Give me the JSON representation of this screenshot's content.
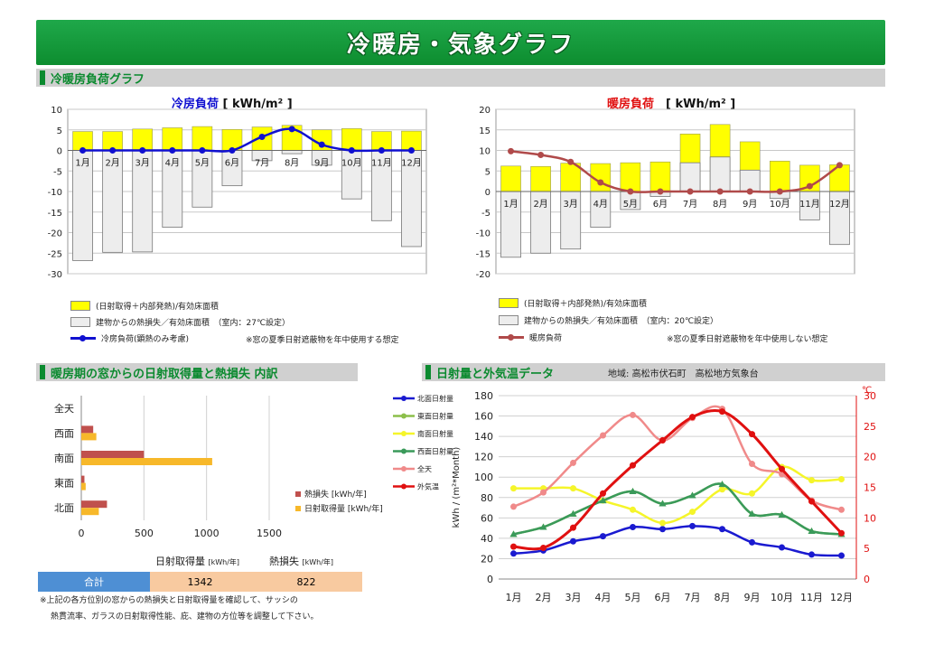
{
  "banner_title": "冷暖房・気象グラフ",
  "sections": {
    "load": "冷暖房負荷グラフ",
    "window": "暖房期の窓からの日射取得量と熱損失 内訳",
    "weather": "日射量と外気温データ",
    "location": "地域: 高松市伏石町　高松地方気象台"
  },
  "cooling_title": "冷房負荷",
  "cooling_unit": "[ kWh/m² ]",
  "heating_title": "暖房負荷",
  "heating_unit": "[ kWh/m² ]",
  "cooling_legend": {
    "gain": "(日射取得＋内部発熱)/有効床面積",
    "loss": "建物からの熱損失／有効床面積　（室内：27℃設定）",
    "line": "冷房負荷(顕熱のみ考慮)",
    "note": "※窓の夏季日射遮蔽物を年中使用する想定"
  },
  "heating_legend": {
    "gain": "(日射取得＋内部発熱)/有効床面積",
    "loss": "建物からの熱損失／有効床面積　（室内：20℃設定）",
    "line": "暖房負荷",
    "note": "※窓の夏季日射遮蔽物を年中使用しない想定"
  },
  "totals": {
    "label": "合計",
    "gain_header": "日射取得量",
    "loss_header": "熱損失",
    "unit": "[kWh/年]",
    "gain_value": "1342",
    "loss_value": "822"
  },
  "footnote": {
    "line1": "※上記の各方位別の窓からの熱損失と日射取得量を確認して、サッシの",
    "line2": "熱貫流率、ガラスの日射取得性能、庇、建物の方位等を調整して下さい。"
  },
  "weather_ylabel": "kWh / (m²*Month)",
  "weather_y2unit": "℃",
  "colors": {
    "banner": "#13a03f",
    "section_text": "#0b8a2f",
    "yellow_bar": "#ffff00",
    "gray_bar": "#ededed",
    "cooling_line": "#1010d0",
    "heating_line": "#b04a4a",
    "loss_bar": "#c0504d",
    "gain_bar": "#f7b82a"
  },
  "chart_data": [
    {
      "type": "bar",
      "title": "冷房負荷 [ kWh/m² ]",
      "categories": [
        "1月",
        "2月",
        "3月",
        "4月",
        "5月",
        "6月",
        "7月",
        "8月",
        "9月",
        "10月",
        "11月",
        "12月"
      ],
      "ylim": [
        -30,
        10
      ],
      "yticks": [
        -30,
        -25,
        -20,
        -15,
        -10,
        -5,
        0,
        5,
        10
      ],
      "series": [
        {
          "name": "(日射取得＋内部発熱)/有効床面積",
          "kind": "bar",
          "values": [
            4.6,
            4.6,
            5.2,
            5.5,
            5.8,
            5.1,
            5.7,
            6.1,
            5.0,
            5.3,
            4.6,
            4.7
          ]
        },
        {
          "name": "建物からの熱損失／有効床面積",
          "kind": "bar",
          "values": [
            -26.8,
            -24.8,
            -24.7,
            -18.7,
            -13.8,
            -8.6,
            -2.5,
            -0.8,
            -3.6,
            -11.8,
            -17.1,
            -23.4
          ]
        },
        {
          "name": "冷房負荷(顕熱のみ考慮)",
          "kind": "line",
          "values": [
            0,
            0,
            0,
            0,
            0,
            0,
            3.3,
            5.2,
            1.4,
            0,
            0,
            0
          ]
        }
      ]
    },
    {
      "type": "bar",
      "title": "暖房負荷 [ kWh/m² ]",
      "categories": [
        "1月",
        "2月",
        "3月",
        "4月",
        "5月",
        "6月",
        "7月",
        "8月",
        "9月",
        "10月",
        "11月",
        "12月"
      ],
      "ylim": [
        -20,
        20
      ],
      "yticks": [
        -20,
        -15,
        -10,
        -5,
        0,
        5,
        10,
        15,
        20
      ],
      "series": [
        {
          "name": "(日射取得＋内部発熱)/有効床面積",
          "kind": "bar",
          "values": [
            6.2,
            6.1,
            6.9,
            6.8,
            7.0,
            7.2,
            14.0,
            16.3,
            12.1,
            7.4,
            6.4,
            6.5
          ]
        },
        {
          "name": "建物からの熱損失／有効床面積",
          "kind": "bar",
          "values": [
            -16,
            -15,
            -14,
            -8.7,
            -4.4,
            -1.2,
            7.0,
            8.4,
            5.2,
            -1.7,
            -6.9,
            -12.9
          ]
        },
        {
          "name": "暖房負荷",
          "kind": "line",
          "values": [
            9.8,
            8.9,
            7.2,
            2.2,
            0,
            0,
            0,
            0,
            0,
            0,
            1.3,
            6.4
          ]
        }
      ]
    },
    {
      "type": "bar",
      "orientation": "horizontal",
      "categories": [
        "全天",
        "西面",
        "南面",
        "東面",
        "北面"
      ],
      "xlim": [
        0,
        1500
      ],
      "xticks": [
        0,
        500,
        1000,
        1500
      ],
      "series": [
        {
          "name": "熱損失 [kWh/年]",
          "values": [
            0,
            95,
            500,
            25,
            205
          ]
        },
        {
          "name": "日射取得量 [kWh/年]",
          "values": [
            0,
            120,
            1045,
            35,
            140
          ]
        }
      ]
    },
    {
      "type": "line",
      "categories": [
        "1月",
        "2月",
        "3月",
        "4月",
        "5月",
        "6月",
        "7月",
        "8月",
        "9月",
        "10月",
        "11月",
        "12月"
      ],
      "ylabel": "kWh / (m²*Month)",
      "ylim": [
        0,
        180
      ],
      "yticks": [
        0,
        20,
        40,
        60,
        80,
        100,
        120,
        140,
        160,
        180
      ],
      "y2lim": [
        0,
        30
      ],
      "y2ticks": [
        0,
        5,
        10,
        15,
        20,
        25,
        30
      ],
      "series": [
        {
          "name": "北面日射量",
          "axis": "left",
          "color": "#1a1ad0",
          "marker": "circle",
          "values": [
            25,
            28,
            37,
            42,
            51,
            49,
            52,
            49,
            36,
            31,
            24,
            23
          ]
        },
        {
          "name": "東面日射量",
          "axis": "left",
          "color": "#8cbf4a",
          "marker": "triangle",
          "values": [
            44,
            51,
            64,
            77,
            86,
            74,
            82,
            93,
            64,
            63,
            47,
            44
          ]
        },
        {
          "name": "南面日射量",
          "axis": "left",
          "color": "#f5f52a",
          "marker": "circle",
          "values": [
            89,
            89,
            89,
            77,
            68,
            55,
            66,
            88,
            84,
            110,
            97,
            98
          ]
        },
        {
          "name": "西面日射量",
          "axis": "left",
          "color": "#3a9a5a",
          "marker": "triangle",
          "values": [
            44,
            51,
            64,
            77,
            86,
            74,
            82,
            93,
            64,
            63,
            47,
            44
          ]
        },
        {
          "name": "全天",
          "axis": "left",
          "color": "#f08a8a",
          "marker": "circle",
          "values": [
            71,
            85,
            114,
            141,
            161,
            136,
            158,
            167,
            113,
            103,
            77,
            68
          ]
        },
        {
          "name": "外気温",
          "axis": "right",
          "color": "#e01010",
          "marker": "circle",
          "values": [
            5.3,
            5.1,
            8.4,
            14.0,
            18.6,
            22.7,
            26.5,
            27.4,
            23.7,
            18.0,
            12.7,
            7.5
          ]
        }
      ]
    }
  ]
}
